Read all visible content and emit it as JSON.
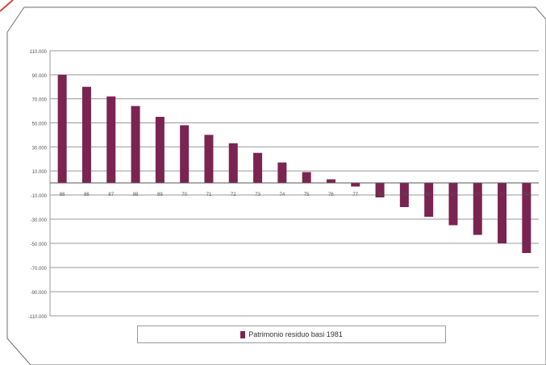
{
  "colors": {
    "bar": "#7a2452",
    "corner_accent": "#d94a3a",
    "frame": "#6e6e6e",
    "grid": "#9a9a9a"
  },
  "chart_data": {
    "type": "bar",
    "categories": [
      "86",
      "86",
      "87",
      "88",
      "89",
      "70",
      "71",
      "72",
      "73",
      "74",
      "75",
      "76",
      "77",
      "78",
      "79",
      "80",
      "81",
      "82",
      "83",
      "84"
    ],
    "series": [
      {
        "name": "Patrimonio residuo basi 1981",
        "values": [
          90000,
          80000,
          72000,
          64000,
          55000,
          48000,
          40000,
          33000,
          25000,
          17000,
          9000,
          3000,
          -3000,
          -12000,
          -20000,
          -28000,
          -35000,
          -43000,
          -50000,
          -58000
        ]
      }
    ],
    "ylim": [
      -110000,
      110000
    ],
    "yticks": [
      "110.000",
      "90.000",
      "70.000",
      "50.000",
      "30.000",
      "10.000",
      "-10.000",
      "-30.000",
      "-50.000",
      "-70.000",
      "-90.000",
      "-110.000"
    ],
    "ytick_values": [
      110000,
      90000,
      70000,
      50000,
      30000,
      10000,
      -10000,
      -30000,
      -50000,
      -70000,
      -90000,
      -110000
    ],
    "grid": true,
    "legend_position": "bottom"
  }
}
